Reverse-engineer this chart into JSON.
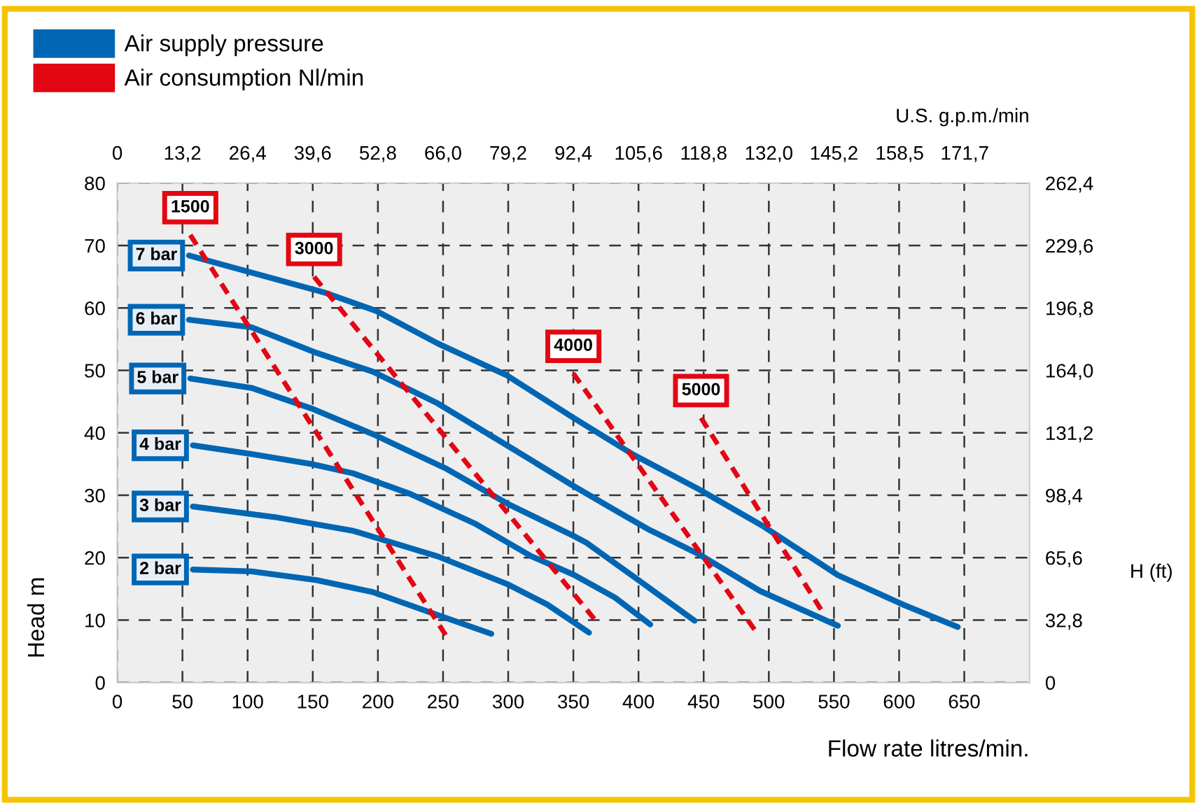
{
  "chart_data": {
    "type": "line",
    "xlabel": "Flow rate litres/min.",
    "ylabel": "Head m",
    "y2label": "H (ft)",
    "x2label": "U.S. g.p.m./min",
    "annotations": [
      "Air supply pressure",
      "Air consumption Nl/min"
    ],
    "xlim": [
      0,
      700
    ],
    "xticks": [
      0,
      50,
      100,
      150,
      200,
      250,
      300,
      350,
      400,
      450,
      500,
      550,
      600,
      650
    ],
    "ylim": [
      0,
      80
    ],
    "yticks": [
      0,
      10,
      20,
      30,
      40,
      50,
      60,
      70,
      80
    ],
    "x2lim": [
      0,
      184.8
    ],
    "x2ticks": [
      0,
      {
        "value": 13.2,
        "label": "13,2"
      },
      {
        "value": 26.4,
        "label": "26,4"
      },
      {
        "value": 39.6,
        "label": "39,6"
      },
      {
        "value": 52.8,
        "label": "52,8"
      },
      {
        "value": 66.0,
        "label": "66,0"
      },
      {
        "value": 79.2,
        "label": "79,2"
      },
      {
        "value": 92.4,
        "label": "92,4"
      },
      {
        "value": 105.6,
        "label": "105,6"
      },
      {
        "value": 118.8,
        "label": "118,8"
      },
      {
        "value": 132.0,
        "label": "132,0"
      },
      {
        "value": 145.2,
        "label": "145,2"
      },
      {
        "value": 158.5,
        "label": "158,5"
      },
      {
        "value": 171.7,
        "label": "171,7"
      }
    ],
    "y2lim": [
      0,
      262.4
    ],
    "y2ticks": [
      0,
      {
        "value": 32.8,
        "label": "32,8"
      },
      {
        "value": 65.6,
        "label": "65,6"
      },
      {
        "value": 98.4,
        "label": "98,4"
      },
      {
        "value": 131.2,
        "label": "131,2"
      },
      {
        "value": 164.0,
        "label": "164,0"
      },
      {
        "value": 196.8,
        "label": "196,8"
      },
      {
        "value": 229.6,
        "label": "229,6"
      },
      {
        "value": 262.4,
        "label": "262,4"
      }
    ],
    "grid": true,
    "legend": "top left",
    "series": [
      {
        "name": "7 bar",
        "color": "#0066b3",
        "line_style": "solid",
        "x": [
          55,
          160,
          199,
          246,
          299,
          350,
          396,
          446,
          496,
          553,
          604,
          645
        ],
        "values": [
          68.4,
          62.4,
          59.5,
          54.3,
          49.2,
          42.4,
          36.5,
          31.0,
          25.0,
          17.2,
          12.4,
          8.9
        ]
      },
      {
        "name": "6 bar",
        "color": "#0066b3",
        "line_style": "solid",
        "x": [
          55,
          103,
          153,
          196,
          246,
          299,
          350,
          382,
          407,
          446,
          493,
          553
        ],
        "values": [
          58.1,
          56.9,
          52.8,
          49.8,
          44.7,
          38.0,
          31.5,
          27.6,
          24.6,
          20.6,
          14.7,
          9.1
        ]
      },
      {
        "name": "5 bar",
        "color": "#0066b3",
        "line_style": "solid",
        "x": [
          56,
          103,
          149,
          196,
          253,
          299,
          350,
          360,
          400,
          443
        ],
        "values": [
          48.7,
          47.2,
          43.9,
          39.8,
          34.2,
          28.7,
          23.5,
          22.4,
          16.4,
          9.9
        ]
      },
      {
        "name": "4 bar",
        "color": "#0066b3",
        "line_style": "solid",
        "x": [
          58,
          103,
          149,
          181,
          225,
          275,
          318,
          350,
          382,
          409
        ],
        "values": [
          38.0,
          36.6,
          35.0,
          33.5,
          30.2,
          25.4,
          20.2,
          17.3,
          13.6,
          9.3
        ]
      },
      {
        "name": "3 bar",
        "color": "#0066b3",
        "line_style": "solid",
        "x": [
          58,
          121,
          181,
          246,
          299,
          330,
          362
        ],
        "values": [
          28.2,
          26.5,
          24.3,
          20.2,
          15.8,
          12.5,
          8.0
        ]
      },
      {
        "name": "2 bar",
        "color": "#0066b3",
        "line_style": "solid",
        "x": [
          58,
          103,
          153,
          196,
          246,
          287
        ],
        "values": [
          18.1,
          17.8,
          16.4,
          14.5,
          10.8,
          7.8
        ]
      },
      {
        "name": "1500",
        "color": "#e30613",
        "line_style": "dashed",
        "x": [
          56,
          252
        ],
        "values": [
          71.7,
          7.6
        ]
      },
      {
        "name": "3000",
        "color": "#e30613",
        "line_style": "dashed",
        "x": [
          151,
          366
        ],
        "values": [
          65.0,
          10.2
        ]
      },
      {
        "name": "4000",
        "color": "#e30613",
        "line_style": "dashed",
        "x": [
          350,
          489
        ],
        "values": [
          49.5,
          8.5
        ]
      },
      {
        "name": "5000",
        "color": "#e30613",
        "line_style": "dashed",
        "x": [
          448,
          540
        ],
        "values": [
          42.4,
          11.7
        ]
      }
    ]
  }
}
